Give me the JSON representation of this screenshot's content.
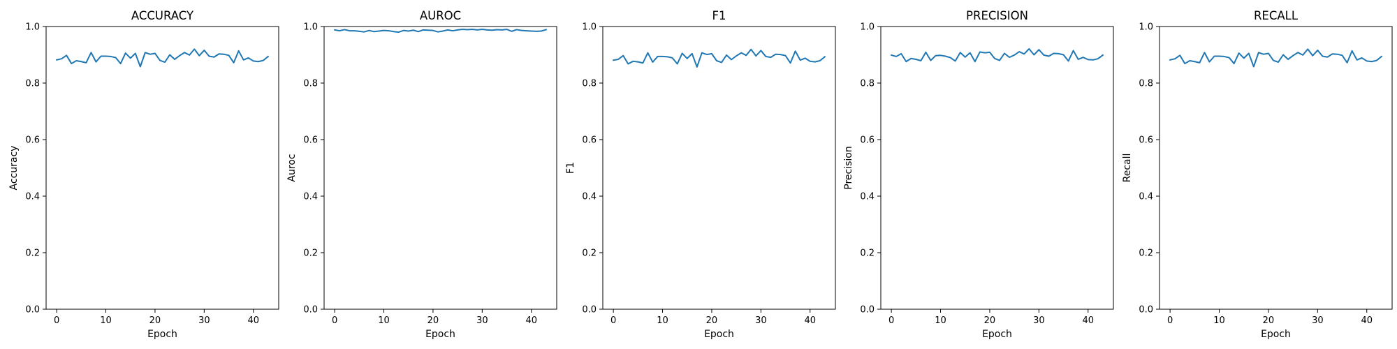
{
  "chart_data": [
    {
      "type": "line",
      "title": "ACCURACY",
      "xlabel": "Epoch",
      "ylabel": "Accuracy",
      "xlim": [
        -2.15,
        45.15
      ],
      "ylim": [
        0.0,
        1.0
      ],
      "xticks": [
        0,
        10,
        20,
        30,
        40
      ],
      "yticks": [
        0.0,
        0.2,
        0.4,
        0.6,
        0.8,
        1.0
      ],
      "ytick_labels": [
        "0.0",
        "0.2",
        "0.4",
        "0.6",
        "0.8",
        "1.0"
      ],
      "grid": false,
      "color": "#1f77b4",
      "x": [
        0,
        1,
        2,
        3,
        4,
        5,
        6,
        7,
        8,
        9,
        10,
        11,
        12,
        13,
        14,
        15,
        16,
        17,
        18,
        19,
        20,
        21,
        22,
        23,
        24,
        25,
        26,
        27,
        28,
        29,
        30,
        31,
        32,
        33,
        34,
        35,
        36,
        37,
        38,
        39,
        40,
        41,
        42,
        43
      ],
      "values": [
        0.882,
        0.886,
        0.898,
        0.869,
        0.879,
        0.876,
        0.872,
        0.908,
        0.875,
        0.895,
        0.895,
        0.894,
        0.89,
        0.869,
        0.906,
        0.888,
        0.905,
        0.858,
        0.908,
        0.902,
        0.905,
        0.88,
        0.874,
        0.9,
        0.884,
        0.897,
        0.908,
        0.899,
        0.92,
        0.897,
        0.916,
        0.895,
        0.892,
        0.903,
        0.902,
        0.898,
        0.872,
        0.914,
        0.882,
        0.889,
        0.878,
        0.876,
        0.88,
        0.894
      ]
    },
    {
      "type": "line",
      "title": "AUROC",
      "xlabel": "Epoch",
      "ylabel": "Auroc",
      "xlim": [
        -2.15,
        45.15
      ],
      "ylim": [
        0.0,
        1.0
      ],
      "xticks": [
        0,
        10,
        20,
        30,
        40
      ],
      "yticks": [
        0.0,
        0.2,
        0.4,
        0.6,
        0.8,
        1.0
      ],
      "ytick_labels": [
        "0.0",
        "0.2",
        "0.4",
        "0.6",
        "0.8",
        "1.0"
      ],
      "grid": false,
      "color": "#1f77b4",
      "x": [
        0,
        1,
        2,
        3,
        4,
        5,
        6,
        7,
        8,
        9,
        10,
        11,
        12,
        13,
        14,
        15,
        16,
        17,
        18,
        19,
        20,
        21,
        22,
        23,
        24,
        25,
        26,
        27,
        28,
        29,
        30,
        31,
        32,
        33,
        34,
        35,
        36,
        37,
        38,
        39,
        40,
        41,
        42,
        43
      ],
      "values": [
        0.988,
        0.985,
        0.989,
        0.985,
        0.985,
        0.983,
        0.981,
        0.986,
        0.982,
        0.984,
        0.986,
        0.985,
        0.982,
        0.98,
        0.986,
        0.984,
        0.987,
        0.982,
        0.988,
        0.987,
        0.986,
        0.981,
        0.984,
        0.988,
        0.985,
        0.988,
        0.99,
        0.989,
        0.99,
        0.988,
        0.99,
        0.988,
        0.987,
        0.989,
        0.988,
        0.99,
        0.983,
        0.989,
        0.986,
        0.985,
        0.984,
        0.983,
        0.984,
        0.989
      ]
    },
    {
      "type": "line",
      "title": "F1",
      "xlabel": "Epoch",
      "ylabel": "F1",
      "xlim": [
        -2.15,
        45.15
      ],
      "ylim": [
        0.0,
        1.0
      ],
      "xticks": [
        0,
        10,
        20,
        30,
        40
      ],
      "yticks": [
        0.0,
        0.2,
        0.4,
        0.6,
        0.8,
        1.0
      ],
      "ytick_labels": [
        "0.0",
        "0.2",
        "0.4",
        "0.6",
        "0.8",
        "1.0"
      ],
      "grid": false,
      "color": "#1f77b4",
      "x": [
        0,
        1,
        2,
        3,
        4,
        5,
        6,
        7,
        8,
        9,
        10,
        11,
        12,
        13,
        14,
        15,
        16,
        17,
        18,
        19,
        20,
        21,
        22,
        23,
        24,
        25,
        26,
        27,
        28,
        29,
        30,
        31,
        32,
        33,
        34,
        35,
        36,
        37,
        38,
        39,
        40,
        41,
        42,
        43
      ],
      "values": [
        0.881,
        0.884,
        0.897,
        0.868,
        0.877,
        0.875,
        0.871,
        0.907,
        0.874,
        0.894,
        0.894,
        0.893,
        0.889,
        0.868,
        0.905,
        0.887,
        0.904,
        0.857,
        0.907,
        0.901,
        0.904,
        0.879,
        0.873,
        0.899,
        0.883,
        0.896,
        0.907,
        0.898,
        0.919,
        0.896,
        0.915,
        0.894,
        0.891,
        0.902,
        0.901,
        0.897,
        0.871,
        0.913,
        0.881,
        0.888,
        0.877,
        0.875,
        0.879,
        0.893
      ]
    },
    {
      "type": "line",
      "title": "PRECISION",
      "xlabel": "Epoch",
      "ylabel": "Precision",
      "xlim": [
        -2.15,
        45.15
      ],
      "ylim": [
        0.0,
        1.0
      ],
      "xticks": [
        0,
        10,
        20,
        30,
        40
      ],
      "yticks": [
        0.0,
        0.2,
        0.4,
        0.6,
        0.8,
        1.0
      ],
      "ytick_labels": [
        "0.0",
        "0.2",
        "0.4",
        "0.6",
        "0.8",
        "1.0"
      ],
      "grid": false,
      "color": "#1f77b4",
      "x": [
        0,
        1,
        2,
        3,
        4,
        5,
        6,
        7,
        8,
        9,
        10,
        11,
        12,
        13,
        14,
        15,
        16,
        17,
        18,
        19,
        20,
        21,
        22,
        23,
        24,
        25,
        26,
        27,
        28,
        29,
        30,
        31,
        32,
        33,
        34,
        35,
        36,
        37,
        38,
        39,
        40,
        41,
        42,
        43
      ],
      "values": [
        0.899,
        0.894,
        0.904,
        0.876,
        0.887,
        0.884,
        0.879,
        0.909,
        0.88,
        0.897,
        0.898,
        0.895,
        0.89,
        0.878,
        0.908,
        0.892,
        0.907,
        0.876,
        0.91,
        0.907,
        0.909,
        0.887,
        0.88,
        0.905,
        0.891,
        0.899,
        0.911,
        0.903,
        0.921,
        0.9,
        0.918,
        0.899,
        0.895,
        0.905,
        0.904,
        0.9,
        0.878,
        0.915,
        0.884,
        0.891,
        0.883,
        0.882,
        0.886,
        0.899
      ]
    },
    {
      "type": "line",
      "title": "RECALL",
      "xlabel": "Epoch",
      "ylabel": "Recall",
      "xlim": [
        -2.15,
        45.15
      ],
      "ylim": [
        0.0,
        1.0
      ],
      "xticks": [
        0,
        10,
        20,
        30,
        40
      ],
      "yticks": [
        0.0,
        0.2,
        0.4,
        0.6,
        0.8,
        1.0
      ],
      "ytick_labels": [
        "0.0",
        "0.2",
        "0.4",
        "0.6",
        "0.8",
        "1.0"
      ],
      "grid": false,
      "color": "#1f77b4",
      "x": [
        0,
        1,
        2,
        3,
        4,
        5,
        6,
        7,
        8,
        9,
        10,
        11,
        12,
        13,
        14,
        15,
        16,
        17,
        18,
        19,
        20,
        21,
        22,
        23,
        24,
        25,
        26,
        27,
        28,
        29,
        30,
        31,
        32,
        33,
        34,
        35,
        36,
        37,
        38,
        39,
        40,
        41,
        42,
        43
      ],
      "values": [
        0.882,
        0.886,
        0.898,
        0.869,
        0.879,
        0.876,
        0.872,
        0.908,
        0.875,
        0.895,
        0.895,
        0.894,
        0.89,
        0.869,
        0.906,
        0.888,
        0.905,
        0.858,
        0.908,
        0.902,
        0.905,
        0.88,
        0.874,
        0.9,
        0.884,
        0.897,
        0.908,
        0.899,
        0.92,
        0.897,
        0.916,
        0.895,
        0.892,
        0.903,
        0.902,
        0.898,
        0.872,
        0.914,
        0.882,
        0.889,
        0.878,
        0.876,
        0.88,
        0.894
      ]
    }
  ]
}
